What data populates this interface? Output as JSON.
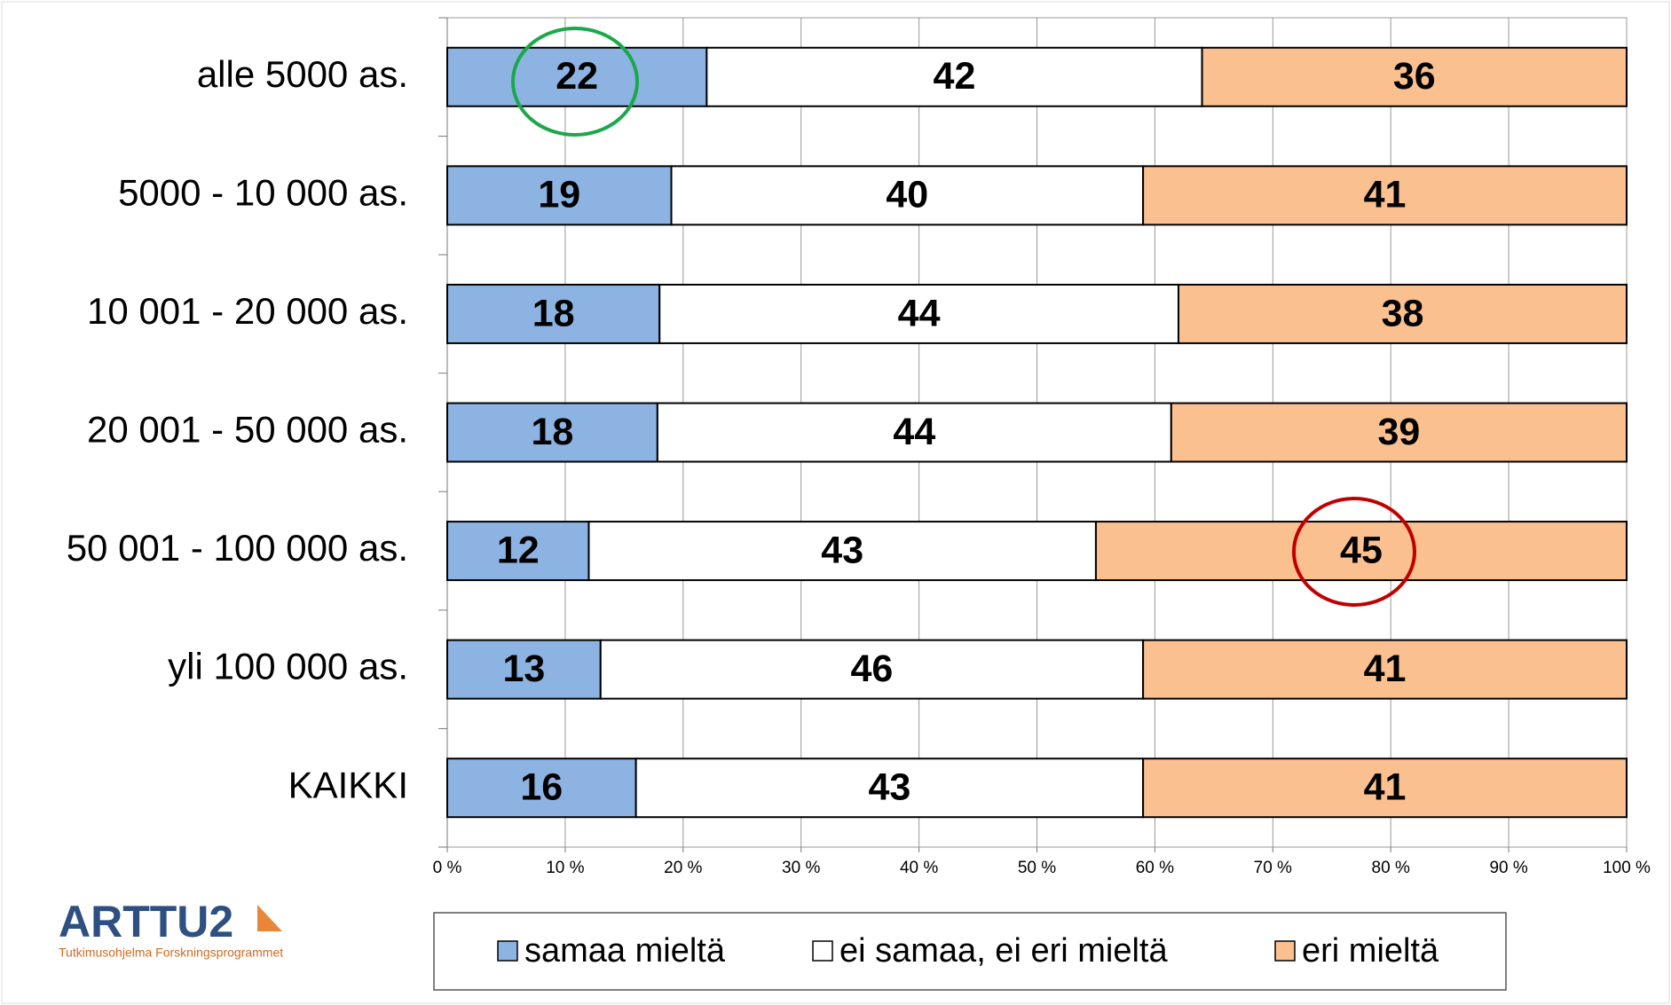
{
  "chart_data": {
    "type": "stacked-barh",
    "categories": [
      "alle 5000 as.",
      "5000 - 10 000 as.",
      "10 001 - 20 000 as.",
      "20 001 - 50 000 as.",
      "50 001 - 100 000 as.",
      "yli 100 000 as.",
      "KAIKKI"
    ],
    "series": [
      {
        "name": "samaa mieltä",
        "color": "#8db3e2",
        "values": [
          22,
          19,
          18,
          18,
          12,
          13,
          16
        ]
      },
      {
        "name": "ei samaa, ei eri mieltä",
        "color": "#ffffff",
        "values": [
          42,
          40,
          44,
          44,
          43,
          46,
          43
        ]
      },
      {
        "name": "eri mieltä",
        "color": "#fac090",
        "values": [
          36,
          41,
          38,
          39,
          45,
          41,
          41
        ]
      }
    ],
    "xlim": [
      0,
      100
    ],
    "xticks": [
      {
        "value": 0,
        "label": "0 %"
      },
      {
        "value": 10,
        "label": "10 %"
      },
      {
        "value": 20,
        "label": "20 %"
      },
      {
        "value": 30,
        "label": "30 %"
      },
      {
        "value": 40,
        "label": "40 %"
      },
      {
        "value": 50,
        "label": "50 %"
      },
      {
        "value": 60,
        "label": "60 %"
      },
      {
        "value": 70,
        "label": "70 %"
      },
      {
        "value": 80,
        "label": "80 %"
      },
      {
        "value": 90,
        "label": "90 %"
      },
      {
        "value": 100,
        "label": "100 %"
      }
    ],
    "grid": true,
    "legend": "bottom",
    "logo": {
      "title": "ARTTU2",
      "subtitle": "Tutkimusohjelma Forskningsprogrammet"
    }
  }
}
